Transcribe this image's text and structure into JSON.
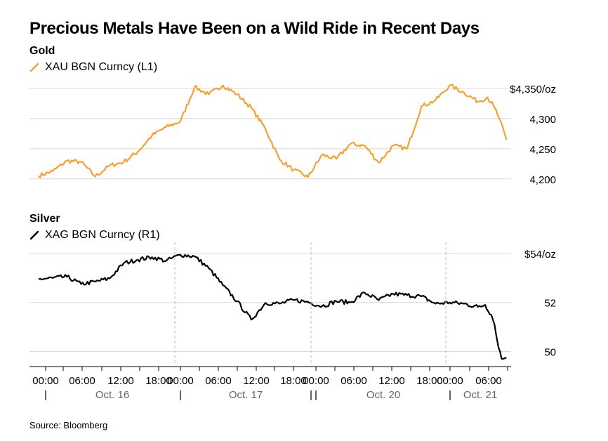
{
  "title": "Precious Metals Have Been on a Wild Ride in Recent Days",
  "source": "Source: Bloomberg",
  "chart_data": [
    {
      "type": "line",
      "panel_title": "Gold",
      "legend": "XAU BGN Curncy (L1)",
      "color": "#f5a12f",
      "yticks": [
        {
          "value": 4350,
          "label": "$4,350/oz"
        },
        {
          "value": 4300,
          "label": "4,300"
        },
        {
          "value": 4250,
          "label": "4,250"
        },
        {
          "value": 4200,
          "label": "4,200"
        }
      ],
      "ylim": [
        4180,
        4380
      ],
      "x": [
        0,
        3,
        6,
        9,
        12,
        15,
        18,
        21,
        24,
        27,
        30,
        33,
        36,
        39,
        42,
        45,
        48,
        51,
        54,
        57,
        60,
        63,
        66,
        69,
        72,
        75,
        78,
        81,
        84,
        87,
        90,
        93
      ],
      "values": [
        4205,
        4213,
        4230,
        4228,
        4204,
        4222,
        4228,
        4245,
        4272,
        4286,
        4295,
        4352,
        4340,
        4355,
        4340,
        4318,
        4283,
        4232,
        4215,
        4203,
        4240,
        4233,
        4258,
        4255,
        4227,
        4255,
        4250,
        4320,
        4330,
        4355,
        4343,
        4328
      ],
      "x_end": [
        95,
        96.5,
        97.5,
        99
      ],
      "values_end": [
        4335,
        4318,
        4300,
        4265
      ]
    },
    {
      "type": "line",
      "panel_title": "Silver",
      "legend": "XAG BGN Curncy (R1)",
      "color": "#000000",
      "yticks": [
        {
          "value": 54,
          "label": "$54/oz"
        },
        {
          "value": 52,
          "label": "52"
        },
        {
          "value": 50,
          "label": "50"
        }
      ],
      "ylim": [
        49.5,
        54.6
      ],
      "x": [
        0,
        3,
        6,
        9,
        12,
        15,
        18,
        21,
        24,
        27,
        30,
        33,
        36,
        39,
        42,
        45,
        48,
        51,
        54,
        57,
        60,
        63,
        66,
        69,
        72,
        75,
        78,
        81,
        84,
        87,
        90,
        93
      ],
      "values": [
        52.95,
        53.0,
        53.05,
        52.75,
        52.85,
        52.98,
        53.6,
        53.75,
        53.85,
        53.7,
        53.95,
        53.88,
        53.4,
        52.7,
        52.05,
        51.3,
        51.98,
        51.95,
        52.1,
        52.02,
        51.85,
        52.05,
        52.0,
        52.4,
        52.1,
        52.35,
        52.3,
        52.25,
        51.95,
        52.0,
        51.95,
        51.82
      ],
      "x_end": [
        94.5,
        95.8,
        96.5,
        97,
        98,
        99
      ],
      "values_end": [
        51.9,
        51.5,
        51.1,
        50.5,
        49.7,
        49.75
      ]
    }
  ],
  "xaxis": {
    "time_labels": [
      "00:00",
      "06:00",
      "12:00",
      "18:00",
      "00:00",
      "06:00",
      "12:00",
      "18:00",
      "00:00",
      "06:00",
      "12:00",
      "18:00",
      "00:00",
      "06:00"
    ],
    "date_labels": [
      "Oct. 16",
      "Oct. 17",
      "Oct. 20",
      "Oct. 21"
    ]
  }
}
